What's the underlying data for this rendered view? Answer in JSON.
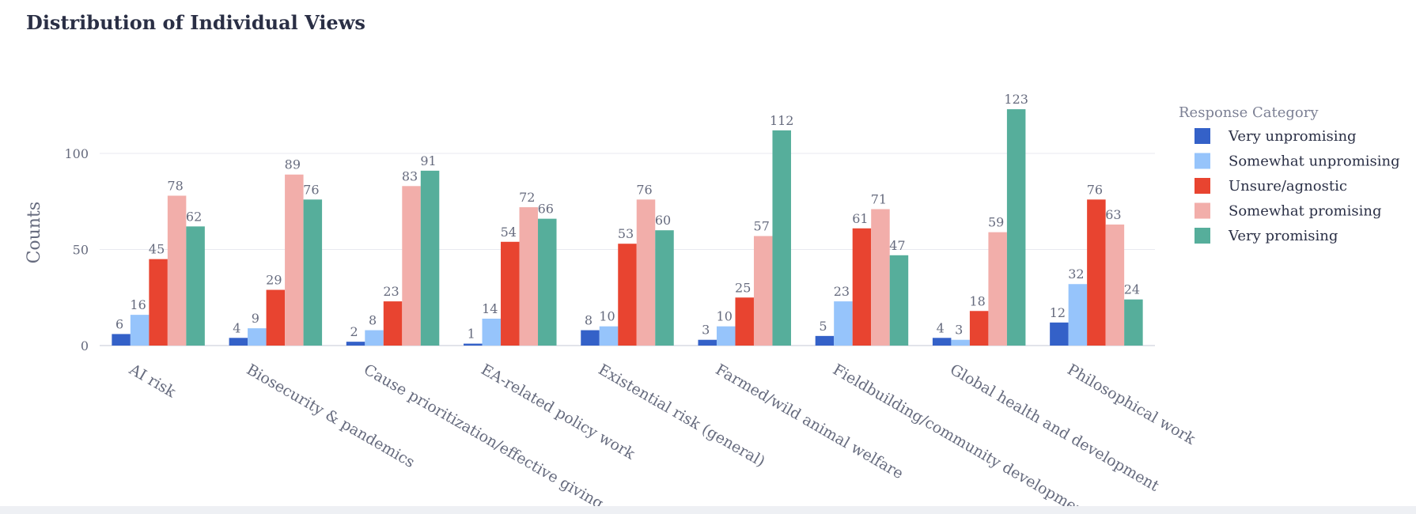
{
  "title": "Distribution of Individual Views",
  "chart_data": {
    "type": "bar",
    "ylabel": "Counts",
    "xlabel": "",
    "ylim": [
      0,
      125
    ],
    "yticks": [
      0,
      50,
      100
    ],
    "legend_title": "Response Category",
    "legend_position": "right",
    "grid": true,
    "categories": [
      "AI risk",
      "Biosecurity & pandemics",
      "Cause prioritization/effective giving",
      "EA-related policy work",
      "Existential risk (general)",
      "Farmed/wild animal welfare",
      "Fieldbuilding/community development",
      "Global health and development",
      "Philosophical work"
    ],
    "series": [
      {
        "name": "Very unpromising",
        "color": "#3461c8",
        "values": [
          6,
          4,
          2,
          1,
          8,
          3,
          5,
          4,
          12
        ]
      },
      {
        "name": "Somewhat unpromising",
        "color": "#96c4fb",
        "values": [
          16,
          9,
          8,
          14,
          10,
          10,
          23,
          3,
          32
        ]
      },
      {
        "name": "Unsure/agnostic",
        "color": "#e84430",
        "values": [
          45,
          29,
          23,
          54,
          53,
          25,
          61,
          18,
          76
        ]
      },
      {
        "name": "Somewhat promising",
        "color": "#f2aeaa",
        "values": [
          78,
          89,
          83,
          72,
          76,
          57,
          71,
          59,
          63
        ]
      },
      {
        "name": "Very promising",
        "color": "#56ae9b",
        "values": [
          62,
          76,
          91,
          66,
          60,
          112,
          47,
          123,
          24
        ]
      }
    ]
  }
}
